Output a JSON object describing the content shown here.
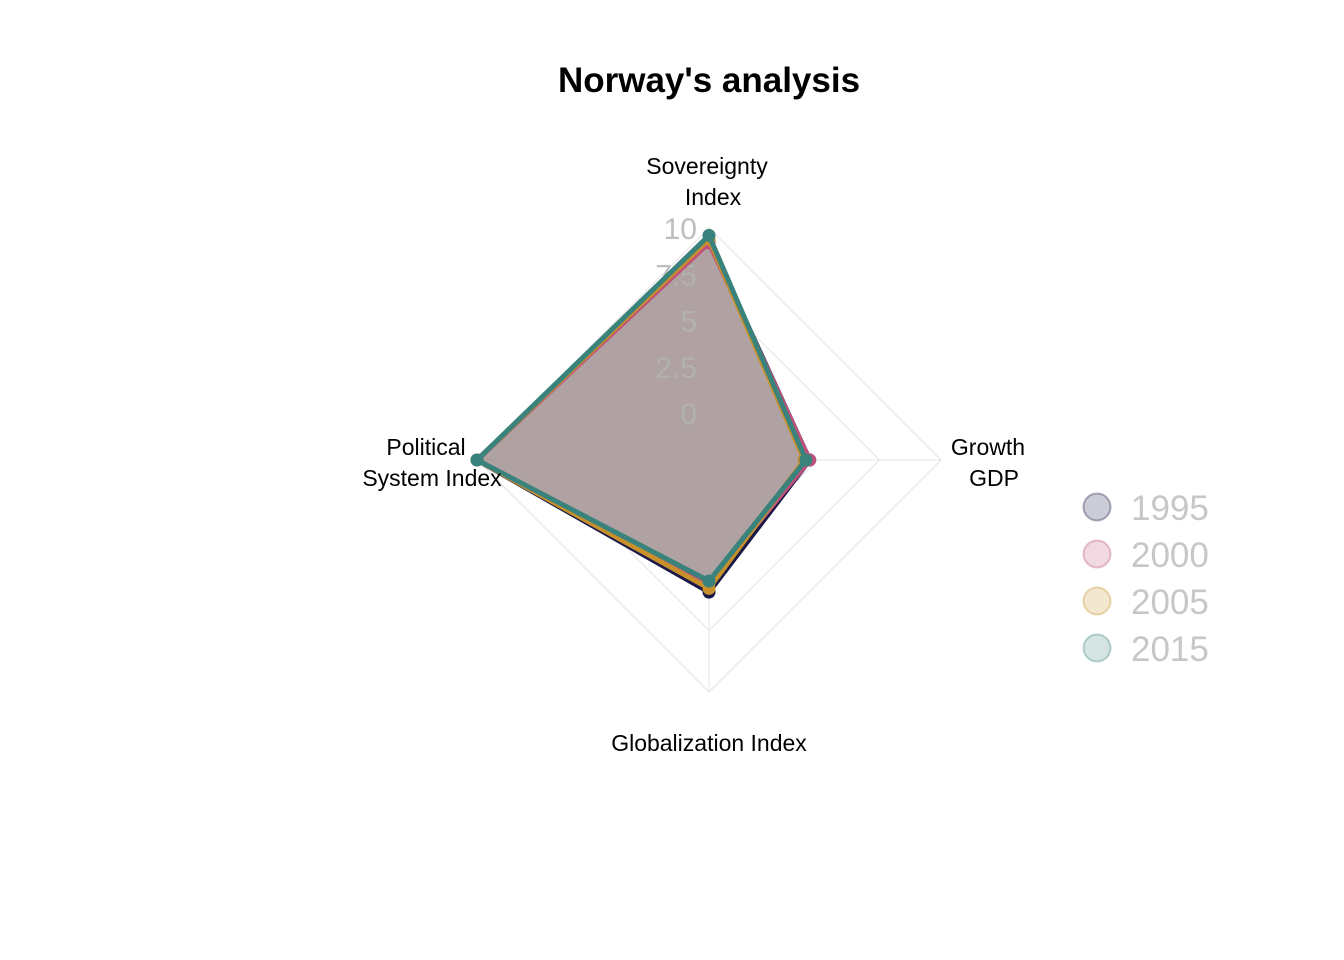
{
  "chart_data": {
    "type": "radar",
    "title": "Norway's analysis",
    "axes": [
      {
        "key": "sovereignty",
        "label_lines": [
          "Sovereignty",
          "Index"
        ]
      },
      {
        "key": "growth",
        "label_lines": [
          "Growth",
          "GDP"
        ]
      },
      {
        "key": "globalization",
        "label_lines": [
          "Globalization Index"
        ]
      },
      {
        "key": "political",
        "label_lines": [
          "Political",
          "System Index"
        ]
      }
    ],
    "range": [
      0,
      10
    ],
    "ticks": [
      0,
      2.5,
      5,
      7.5,
      10
    ],
    "tick_labels": [
      "0",
      "2.5",
      "5",
      "7.5",
      "10"
    ],
    "series": [
      {
        "name": "1995",
        "color": "#191949",
        "values": [
          9.3,
          2.9,
          4.6,
          10.0
        ]
      },
      {
        "name": "2000",
        "color": "#c0507a",
        "values": [
          9.2,
          2.9,
          4.1,
          10.0
        ]
      },
      {
        "name": "2005",
        "color": "#c8902a",
        "values": [
          9.4,
          2.6,
          4.4,
          10.0
        ]
      },
      {
        "name": "2015",
        "color": "#3a837d",
        "values": [
          9.6,
          2.7,
          4.0,
          10.0
        ]
      }
    ],
    "fill_color": "#a89a9a",
    "legend_position": "right"
  }
}
